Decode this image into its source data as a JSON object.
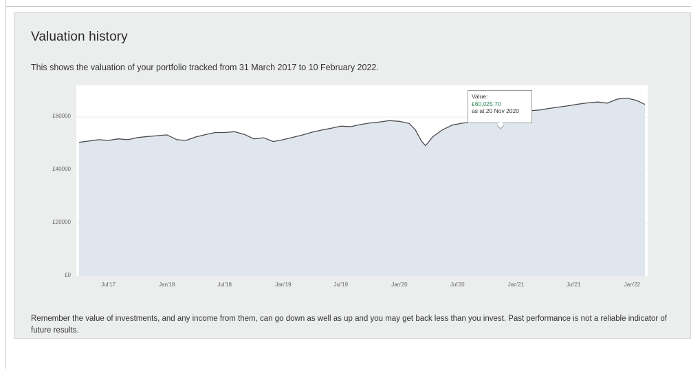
{
  "panel": {
    "title": "Valuation history",
    "subtitle": "This shows the valuation of your portfolio tracked from 31 March 2017 to 10 February 2022.",
    "disclaimer": "Remember the value of investments, and any income from them, can go down as well as up and you may get back less than you invest. Past performance is not a reliable indicator of future results."
  },
  "tooltip": {
    "label": "Value:",
    "value": "£60,025.70",
    "date": "as at 20 Nov 2020"
  },
  "colors": {
    "line": "#4a4a4a",
    "area": "#dfe6ed",
    "panel_bg": "#eceded",
    "tooltip_value": "#2e8b57"
  },
  "chart_data": {
    "type": "area",
    "title": "",
    "xlabel": "",
    "ylabel": "",
    "ylim": [
      0,
      72000
    ],
    "grid": true,
    "y_ticks": [
      {
        "value": 0,
        "label": "£0"
      },
      {
        "value": 20000,
        "label": "£20000"
      },
      {
        "value": 40000,
        "label": "£40000"
      },
      {
        "value": 60000,
        "label": "£60000"
      }
    ],
    "x_ticks": [
      {
        "date": "2017-07-01",
        "label": "Jul'17"
      },
      {
        "date": "2018-01-01",
        "label": "Jan'18"
      },
      {
        "date": "2018-07-01",
        "label": "Jul'18"
      },
      {
        "date": "2019-01-01",
        "label": "Jan'19"
      },
      {
        "date": "2019-07-01",
        "label": "Jul'19"
      },
      {
        "date": "2020-01-01",
        "label": "Jan'20"
      },
      {
        "date": "2020-07-01",
        "label": "Jul'20"
      },
      {
        "date": "2021-01-01",
        "label": "Jan'21"
      },
      {
        "date": "2021-07-01",
        "label": "Jul'21"
      },
      {
        "date": "2022-01-01",
        "label": "Jan'22"
      }
    ],
    "xlim": [
      "2017-03-31",
      "2022-02-10"
    ],
    "highlight": {
      "date": "2020-11-20",
      "value": 60025.7
    },
    "series": [
      {
        "x": [
          "2017-03-31",
          "2017-05-01",
          "2017-06-01",
          "2017-07-01",
          "2017-08-01",
          "2017-09-01",
          "2017-10-01",
          "2017-11-01",
          "2017-12-01",
          "2018-01-01",
          "2018-02-01",
          "2018-03-01",
          "2018-04-01",
          "2018-05-01",
          "2018-06-01",
          "2018-07-01",
          "2018-08-01",
          "2018-09-01",
          "2018-10-01",
          "2018-11-01",
          "2018-12-01",
          "2019-01-01",
          "2019-02-01",
          "2019-03-01",
          "2019-04-01",
          "2019-05-01",
          "2019-06-01",
          "2019-07-01",
          "2019-08-01",
          "2019-09-01",
          "2019-10-01",
          "2019-11-01",
          "2019-12-01",
          "2020-01-01",
          "2020-02-01",
          "2020-02-20",
          "2020-03-10",
          "2020-03-23",
          "2020-04-15",
          "2020-05-15",
          "2020-06-15",
          "2020-07-15",
          "2020-08-15",
          "2020-09-15",
          "2020-10-15",
          "2020-11-20",
          "2020-12-15",
          "2021-01-15",
          "2021-02-15",
          "2021-03-15",
          "2021-04-15",
          "2021-05-15",
          "2021-06-15",
          "2021-07-15",
          "2021-08-15",
          "2021-09-15",
          "2021-10-15",
          "2021-11-15",
          "2021-12-15",
          "2022-01-15",
          "2022-02-10"
        ],
        "values": [
          50500,
          51000,
          51500,
          51200,
          51800,
          51500,
          52300,
          52700,
          53000,
          53300,
          51500,
          51200,
          52500,
          53400,
          54200,
          54200,
          54500,
          53500,
          51800,
          52200,
          50800,
          51500,
          52400,
          53200,
          54300,
          55100,
          55800,
          56600,
          56400,
          57200,
          57800,
          58200,
          58700,
          58400,
          57600,
          55200,
          51000,
          49200,
          52600,
          55200,
          57000,
          57700,
          58100,
          58600,
          59000,
          60025.7,
          61800,
          62100,
          62400,
          62700,
          63300,
          63800,
          64300,
          64900,
          65400,
          65700,
          65300,
          66800,
          67200,
          66300,
          64800
        ]
      }
    ]
  }
}
